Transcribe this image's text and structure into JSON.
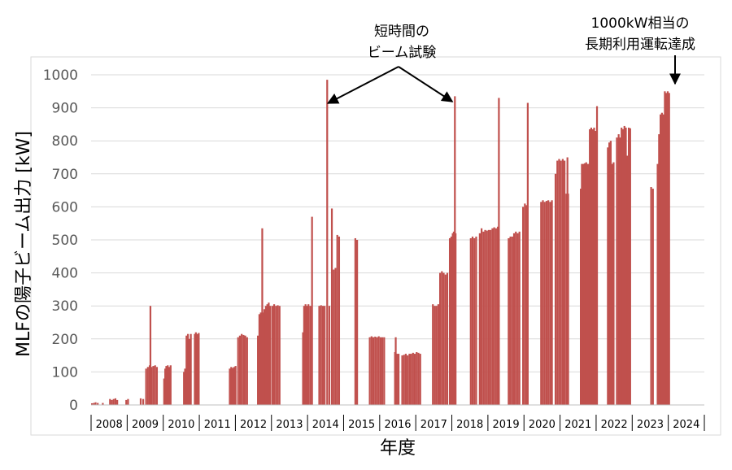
{
  "chart_data": {
    "type": "bar",
    "xlabel": "年度",
    "ylabel": "MLFの陽子ビーム出力 [kW]",
    "ylim": [
      0,
      1000
    ],
    "yticks": [
      "0",
      "100",
      "200",
      "300",
      "400",
      "500",
      "600",
      "700",
      "800",
      "900",
      "1000"
    ],
    "xlim": [
      2008,
      2025
    ],
    "x_categories": [
      "2008",
      "2009",
      "2010",
      "2011",
      "2012",
      "2013",
      "2014",
      "2015",
      "2016",
      "2017",
      "2018",
      "2019",
      "2020",
      "2021",
      "2022",
      "2023",
      "2024"
    ],
    "grid": true,
    "bar_color": "#C0504D",
    "annotations": [
      {
        "text_lines": [
          "短時間の",
          "ビーム試験"
        ]
      },
      {
        "text_lines": [
          "1000kW相当の",
          "長期利用運転達成"
        ]
      }
    ],
    "series": [
      {
        "points": [
          [
            2008.0,
            5
          ],
          [
            2008.05,
            6
          ],
          [
            2008.1,
            8
          ],
          [
            2008.16,
            6
          ],
          [
            2008.3,
            6
          ],
          [
            2008.5,
            18
          ],
          [
            2008.55,
            15
          ],
          [
            2008.6,
            18
          ],
          [
            2008.65,
            20
          ],
          [
            2008.7,
            15
          ],
          [
            2008.95,
            15
          ],
          [
            2009.0,
            18
          ],
          [
            2009.35,
            20
          ],
          [
            2009.42,
            18
          ],
          [
            2009.5,
            110
          ],
          [
            2009.55,
            115
          ],
          [
            2009.6,
            120
          ],
          [
            2009.62,
            300
          ],
          [
            2009.65,
            115
          ],
          [
            2009.7,
            118
          ],
          [
            2009.75,
            120
          ],
          [
            2009.8,
            115
          ],
          [
            2010.0,
            80
          ],
          [
            2010.03,
            110
          ],
          [
            2010.06,
            118
          ],
          [
            2010.1,
            120
          ],
          [
            2010.14,
            115
          ],
          [
            2010.18,
            120
          ],
          [
            2010.55,
            100
          ],
          [
            2010.58,
            110
          ],
          [
            2010.62,
            210
          ],
          [
            2010.66,
            215
          ],
          [
            2010.7,
            200
          ],
          [
            2010.74,
            215
          ],
          [
            2010.85,
            215
          ],
          [
            2010.88,
            220
          ],
          [
            2010.92,
            215
          ],
          [
            2010.96,
            218
          ],
          [
            2011.82,
            110
          ],
          [
            2011.86,
            115
          ],
          [
            2011.9,
            112
          ],
          [
            2011.94,
            115
          ],
          [
            2011.98,
            118
          ],
          [
            2012.05,
            205
          ],
          [
            2012.1,
            210
          ],
          [
            2012.15,
            215
          ],
          [
            2012.2,
            212
          ],
          [
            2012.25,
            210
          ],
          [
            2012.3,
            205
          ],
          [
            2012.6,
            210
          ],
          [
            2012.64,
            275
          ],
          [
            2012.68,
            280
          ],
          [
            2012.72,
            535
          ],
          [
            2012.75,
            280
          ],
          [
            2012.78,
            290
          ],
          [
            2012.82,
            300
          ],
          [
            2012.86,
            305
          ],
          [
            2012.9,
            310
          ],
          [
            2012.94,
            300
          ],
          [
            2013.0,
            300
          ],
          [
            2013.05,
            305
          ],
          [
            2013.1,
            300
          ],
          [
            2013.15,
            302
          ],
          [
            2013.2,
            300
          ],
          [
            2013.85,
            220
          ],
          [
            2013.88,
            300
          ],
          [
            2013.92,
            305
          ],
          [
            2013.96,
            300
          ],
          [
            2014.0,
            305
          ],
          [
            2014.05,
            300
          ],
          [
            2014.1,
            570
          ],
          [
            2014.3,
            300
          ],
          [
            2014.35,
            302
          ],
          [
            2014.4,
            300
          ],
          [
            2014.45,
            300
          ],
          [
            2014.52,
            985
          ],
          [
            2014.58,
            300
          ],
          [
            2014.65,
            595
          ],
          [
            2014.7,
            410
          ],
          [
            2014.75,
            415
          ],
          [
            2014.8,
            515
          ],
          [
            2014.85,
            510
          ],
          [
            2015.3,
            505
          ],
          [
            2015.35,
            500
          ],
          [
            2015.7,
            205
          ],
          [
            2015.75,
            208
          ],
          [
            2015.8,
            205
          ],
          [
            2015.85,
            207
          ],
          [
            2015.9,
            205
          ],
          [
            2015.95,
            208
          ],
          [
            2016.0,
            205
          ],
          [
            2016.05,
            205
          ],
          [
            2016.1,
            205
          ],
          [
            2016.4,
            160
          ],
          [
            2016.42,
            205
          ],
          [
            2016.45,
            155
          ],
          [
            2016.5,
            155
          ],
          [
            2016.6,
            150
          ],
          [
            2016.65,
            152
          ],
          [
            2016.7,
            155
          ],
          [
            2016.75,
            150
          ],
          [
            2016.8,
            155
          ],
          [
            2016.85,
            155
          ],
          [
            2016.9,
            158
          ],
          [
            2016.95,
            155
          ],
          [
            2017.0,
            160
          ],
          [
            2017.05,
            158
          ],
          [
            2017.1,
            155
          ],
          [
            2017.45,
            305
          ],
          [
            2017.5,
            300
          ],
          [
            2017.55,
            300
          ],
          [
            2017.6,
            305
          ],
          [
            2017.65,
            400
          ],
          [
            2017.7,
            405
          ],
          [
            2017.75,
            400
          ],
          [
            2017.8,
            395
          ],
          [
            2017.85,
            400
          ],
          [
            2017.92,
            505
          ],
          [
            2017.96,
            510
          ],
          [
            2018.0,
            520
          ],
          [
            2018.03,
            525
          ],
          [
            2018.06,
            935
          ],
          [
            2018.08,
            520
          ],
          [
            2018.5,
            505
          ],
          [
            2018.55,
            510
          ],
          [
            2018.6,
            505
          ],
          [
            2018.65,
            510
          ],
          [
            2018.75,
            520
          ],
          [
            2018.8,
            535
          ],
          [
            2018.85,
            525
          ],
          [
            2018.9,
            530
          ],
          [
            2018.95,
            528
          ],
          [
            2019.0,
            530
          ],
          [
            2019.05,
            530
          ],
          [
            2019.1,
            535
          ],
          [
            2019.15,
            538
          ],
          [
            2019.2,
            535
          ],
          [
            2019.25,
            540
          ],
          [
            2019.28,
            930
          ],
          [
            2019.55,
            505
          ],
          [
            2019.6,
            510
          ],
          [
            2019.65,
            510
          ],
          [
            2019.7,
            520
          ],
          [
            2019.75,
            525
          ],
          [
            2019.8,
            520
          ],
          [
            2019.85,
            525
          ],
          [
            2019.95,
            600
          ],
          [
            2020.0,
            610
          ],
          [
            2020.05,
            605
          ],
          [
            2020.08,
            915
          ],
          [
            2020.45,
            615
          ],
          [
            2020.5,
            620
          ],
          [
            2020.55,
            615
          ],
          [
            2020.6,
            618
          ],
          [
            2020.65,
            620
          ],
          [
            2020.7,
            615
          ],
          [
            2020.75,
            620
          ],
          [
            2020.85,
            700
          ],
          [
            2020.9,
            740
          ],
          [
            2020.95,
            745
          ],
          [
            2021.0,
            740
          ],
          [
            2021.05,
            745
          ],
          [
            2021.1,
            740
          ],
          [
            2021.15,
            640
          ],
          [
            2021.18,
            750
          ],
          [
            2021.2,
            640
          ],
          [
            2021.55,
            655
          ],
          [
            2021.58,
            730
          ],
          [
            2021.62,
            730
          ],
          [
            2021.66,
            732
          ],
          [
            2021.7,
            735
          ],
          [
            2021.74,
            730
          ],
          [
            2021.78,
            730
          ],
          [
            2021.8,
            835
          ],
          [
            2021.84,
            840
          ],
          [
            2021.88,
            835
          ],
          [
            2021.92,
            840
          ],
          [
            2021.96,
            830
          ],
          [
            2022.0,
            905
          ],
          [
            2022.3,
            780
          ],
          [
            2022.34,
            795
          ],
          [
            2022.38,
            800
          ],
          [
            2022.42,
            730
          ],
          [
            2022.46,
            735
          ],
          [
            2022.55,
            810
          ],
          [
            2022.6,
            820
          ],
          [
            2022.64,
            810
          ],
          [
            2022.68,
            840
          ],
          [
            2022.72,
            835
          ],
          [
            2022.76,
            845
          ],
          [
            2022.8,
            840
          ],
          [
            2022.84,
            755
          ],
          [
            2022.88,
            840
          ],
          [
            2022.92,
            838
          ],
          [
            2023.5,
            660
          ],
          [
            2023.55,
            655
          ],
          [
            2023.68,
            730
          ],
          [
            2023.72,
            820
          ],
          [
            2023.76,
            880
          ],
          [
            2023.8,
            885
          ],
          [
            2023.84,
            880
          ],
          [
            2023.88,
            950
          ],
          [
            2023.92,
            945
          ],
          [
            2023.96,
            950
          ],
          [
            2024.0,
            945
          ]
        ]
      }
    ]
  }
}
